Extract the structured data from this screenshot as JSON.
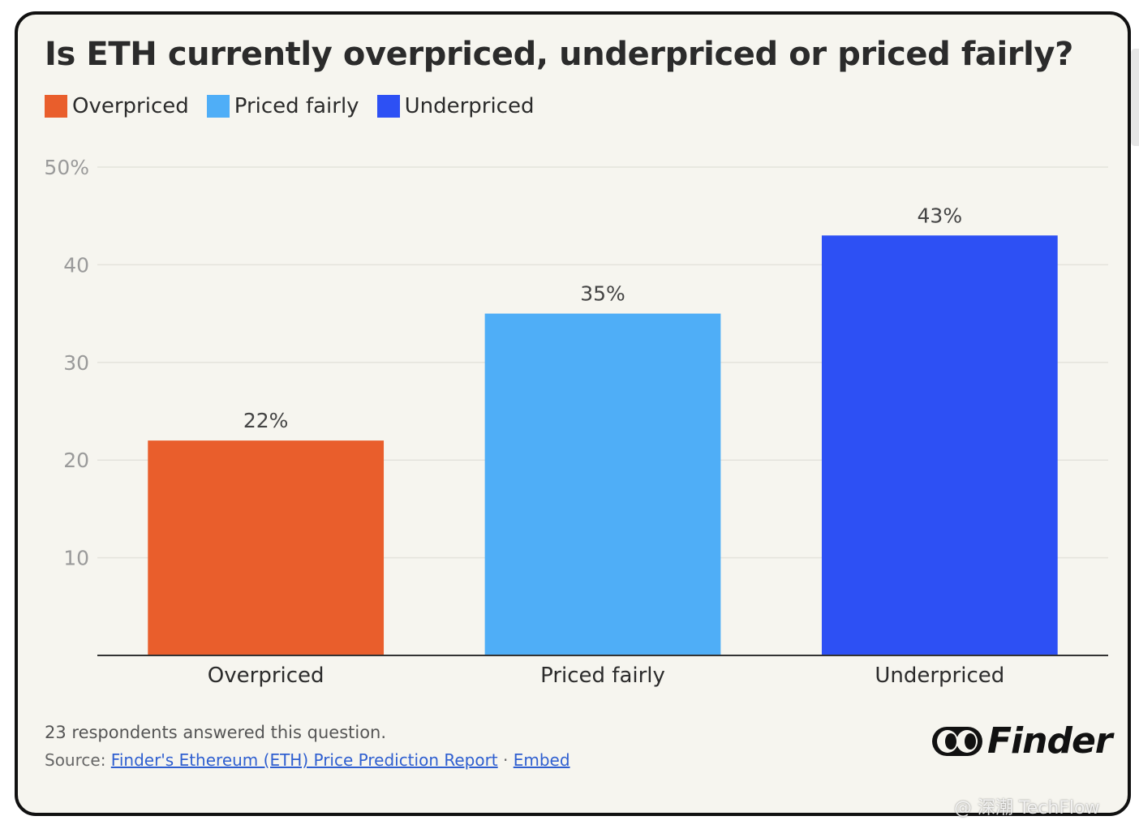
{
  "chart_data": {
    "type": "bar",
    "title": "Is ETH currently overpriced, underpriced or priced fairly?",
    "categories": [
      "Overpriced",
      "Priced fairly",
      "Underpriced"
    ],
    "values": [
      22,
      35,
      43
    ],
    "value_labels": [
      "22%",
      "35%",
      "43%"
    ],
    "colors": [
      "#e95e2c",
      "#4faef7",
      "#2d50f4"
    ],
    "legend": [
      "Overpriced",
      "Priced fairly",
      "Underpriced"
    ],
    "legend_position": "top-left",
    "ylim": [
      0,
      50
    ],
    "yticks": [
      10,
      20,
      30,
      40,
      50
    ],
    "ytick_labels": [
      "10",
      "20",
      "30",
      "40",
      "50%"
    ],
    "grid": true
  },
  "footer": {
    "note": "23 respondents answered this question.",
    "source_prefix": "Source: ",
    "source_link": "Finder's Ethereum (ETH) Price Prediction Report",
    "separator": " · ",
    "embed_link": "Embed"
  },
  "brand": {
    "name": "Finder"
  },
  "watermark": "@ 深潮 TechFlow"
}
